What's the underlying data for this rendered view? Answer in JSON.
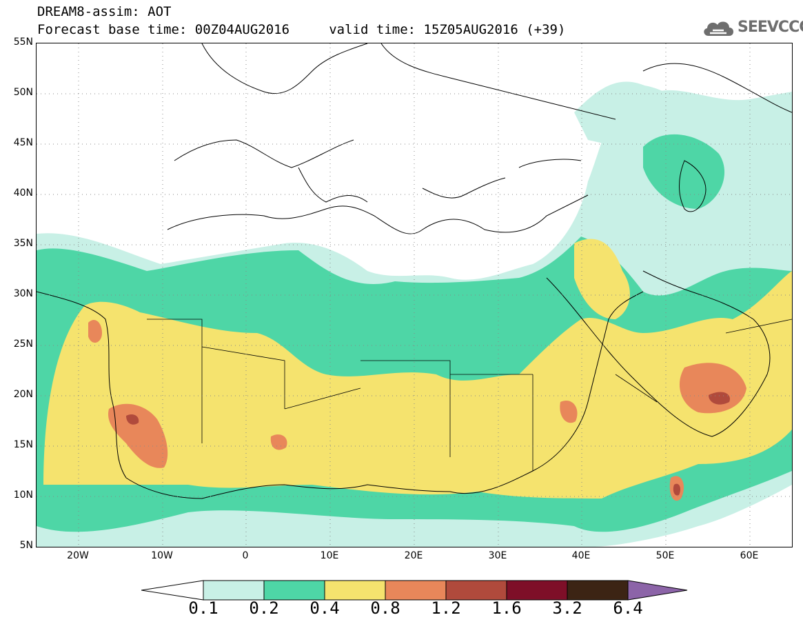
{
  "header": {
    "line1": "DREAM8-assim: AOT",
    "line2": "Forecast base time: 00Z04AUG2016     valid time: 15Z05AUG2016 (+39)"
  },
  "logo": {
    "text": "SEEVCCC",
    "icon": "cloud-icon",
    "color": "#6e6e6e"
  },
  "map": {
    "lat_labels": [
      "55N",
      "50N",
      "45N",
      "40N",
      "35N",
      "30N",
      "25N",
      "20N",
      "15N",
      "10N",
      "5N"
    ],
    "lon_labels": [
      "20W",
      "10W",
      "0",
      "10E",
      "20E",
      "30E",
      "40E",
      "50E",
      "60E"
    ],
    "lat_range": [
      5,
      55
    ],
    "lon_range": [
      -25,
      65
    ],
    "grid": "dotted"
  },
  "legend": {
    "labels": [
      "0.1",
      "0.2",
      "0.4",
      "0.8",
      "1.2",
      "1.6",
      "3.2",
      "6.4"
    ],
    "colors": [
      "#ffffff",
      "#c8f0e6",
      "#4ed6a6",
      "#f5e36e",
      "#e8875a",
      "#b04a3c",
      "#7e0f28",
      "#3c2414",
      "#8c64a8"
    ]
  }
}
